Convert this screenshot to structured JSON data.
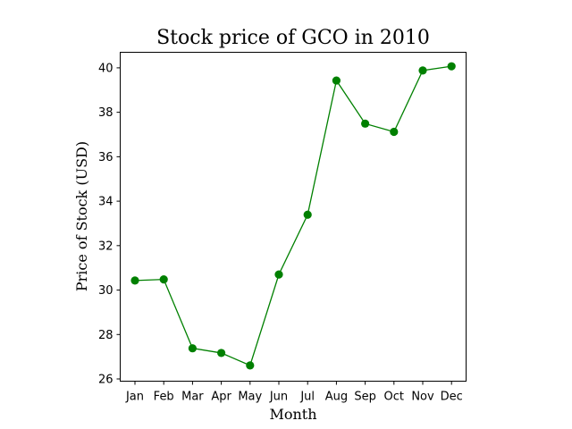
{
  "chart_data": {
    "type": "line",
    "title": "Stock price of GCO in 2010",
    "xlabel": "Month",
    "ylabel": "Price of Stock (USD)",
    "categories": [
      "Jan",
      "Feb",
      "Mar",
      "Apr",
      "May",
      "Jun",
      "Jul",
      "Aug",
      "Sep",
      "Oct",
      "Nov",
      "Dec"
    ],
    "series": [
      {
        "values": [
          30.43,
          30.48,
          27.38,
          27.17,
          26.61,
          30.7,
          33.39,
          39.43,
          37.49,
          37.12,
          39.88,
          40.07
        ],
        "color": "#008000",
        "marker": "circle"
      }
    ],
    "yticks": [
      26,
      28,
      30,
      32,
      34,
      36,
      38,
      40
    ],
    "ylim": [
      25.9,
      40.7
    ],
    "grid": false,
    "legend": "none"
  }
}
